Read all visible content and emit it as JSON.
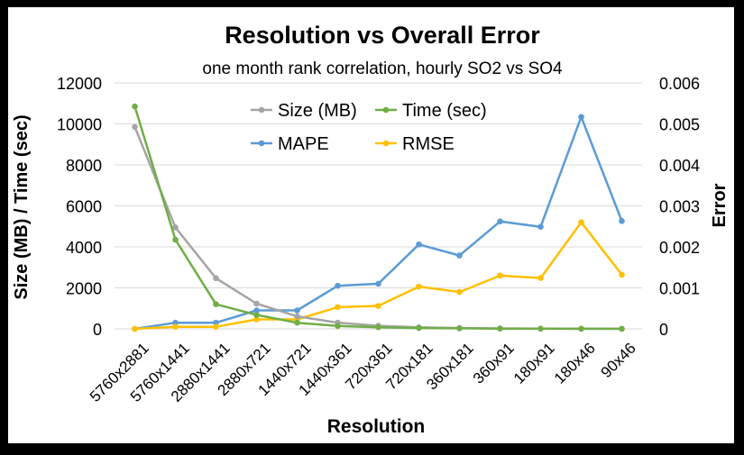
{
  "chart_data": {
    "type": "line",
    "title": "Resolution vs Overall Error",
    "subtitle": "one month rank correlation, hourly SO2 vs SO4",
    "xlabel": "Resolution",
    "ylabel_left": "Size (MB) / Time (sec)",
    "ylabel_right": "Error",
    "categories": [
      "5760x2881",
      "5760x1441",
      "2880x1441",
      "2880x721",
      "1440x721",
      "1440x361",
      "720x361",
      "720x181",
      "360x181",
      "360x91",
      "180x91",
      "180x46",
      "90x46"
    ],
    "y_left": {
      "min": 0,
      "max": 12000,
      "ticks": [
        0,
        2000,
        4000,
        6000,
        8000,
        10000,
        12000
      ],
      "tick_labels": [
        "0",
        "2000",
        "4000",
        "6000",
        "8000",
        "10000",
        "12000"
      ]
    },
    "y_right": {
      "min": 0,
      "max": 0.006,
      "ticks": [
        0,
        0.001,
        0.002,
        0.003,
        0.004,
        0.005,
        0.006
      ],
      "tick_labels": [
        "0",
        "0.001",
        "0.002",
        "0.003",
        "0.004",
        "0.005",
        "0.006"
      ]
    },
    "grid": true,
    "legend_position": "top-center",
    "series": [
      {
        "name": "Size (MB)",
        "axis": "left",
        "color": "#A5A5A5",
        "values": [
          9850,
          4950,
          2470,
          1230,
          610,
          305,
          150,
          75,
          40,
          20,
          10,
          5,
          3
        ]
      },
      {
        "name": "Time (sec)",
        "axis": "left",
        "color": "#70AD47",
        "values": [
          10850,
          4350,
          1200,
          680,
          300,
          140,
          80,
          40,
          25,
          15,
          8,
          5,
          3
        ]
      },
      {
        "name": "MAPE",
        "axis": "right",
        "color": "#5B9BD5",
        "values": [
          0,
          0.00015,
          0.00015,
          0.00045,
          0.00045,
          0.00105,
          0.0011,
          0.00206,
          0.00179,
          0.00262,
          0.00249,
          0.00517,
          0.00263
        ]
      },
      {
        "name": "RMSE",
        "axis": "right",
        "color": "#FFC000",
        "values": [
          0,
          5e-05,
          5e-05,
          0.00023,
          0.00023,
          0.00053,
          0.00056,
          0.00103,
          0.0009,
          0.0013,
          0.00124,
          0.0026,
          0.00132
        ]
      }
    ]
  }
}
